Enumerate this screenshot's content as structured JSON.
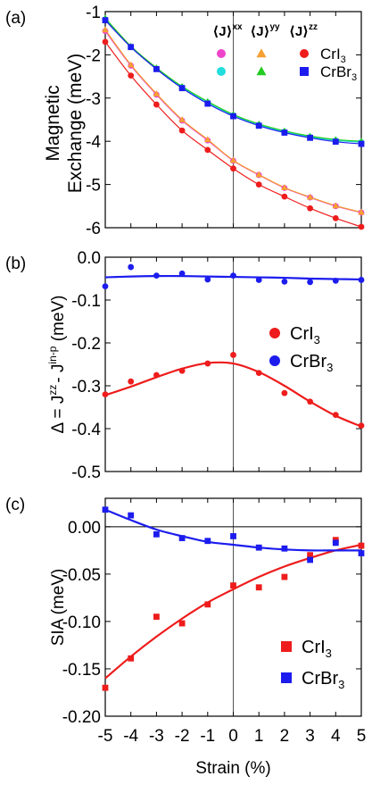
{
  "chart_data": [
    {
      "type": "scatter",
      "panel_label": "(a)",
      "ylabel_lines": [
        "Magnetic",
        "Exchange  (meV)"
      ],
      "xlabel": "",
      "ylim": [
        -6,
        -1
      ],
      "xlim": [
        -5,
        5
      ],
      "yticks": [
        -1,
        -2,
        -3,
        -4,
        -5,
        -6
      ],
      "xticks": [
        -5,
        -4,
        -3,
        -2,
        -1,
        0,
        1,
        2,
        3,
        4,
        5
      ],
      "legend": {
        "column_headers": [
          "⟨J⟩",
          "⟨J⟩",
          "⟨J⟩"
        ],
        "column_superscripts": [
          "xx",
          "yy",
          "zz"
        ],
        "row_labels": [
          "CrI",
          "CrBr"
        ],
        "row_subscripts": [
          "3",
          "3"
        ],
        "placement": "top-right"
      },
      "series": [
        {
          "name": "CrI3 J_xx",
          "color": "#ee44cc",
          "marker": "circle",
          "fit_color": "#ee44cc",
          "x": [
            -5,
            -4,
            -3,
            -2,
            -1,
            0,
            1,
            2,
            3,
            4,
            5
          ],
          "values": [
            -1.45,
            -2.25,
            -2.92,
            -3.52,
            -3.98,
            -4.45,
            -4.78,
            -5.08,
            -5.3,
            -5.5,
            -5.65
          ]
        },
        {
          "name": "CrI3 J_yy",
          "color": "#f5a030",
          "marker": "triangle",
          "fit_color": "#f5a030",
          "x": [
            -5,
            -4,
            -3,
            -2,
            -1,
            0,
            1,
            2,
            3,
            4,
            5
          ],
          "values": [
            -1.42,
            -2.23,
            -2.9,
            -3.5,
            -3.96,
            -4.44,
            -4.77,
            -5.07,
            -5.29,
            -5.49,
            -5.64
          ]
        },
        {
          "name": "CrI3 J_zz",
          "color": "#ee1c1c",
          "marker": "circle",
          "fit_color": "#ee1c1c",
          "x": [
            -5,
            -4,
            -3,
            -2,
            -1,
            0,
            1,
            2,
            3,
            4,
            5
          ],
          "values": [
            -1.7,
            -2.48,
            -3.15,
            -3.75,
            -4.2,
            -4.63,
            -5.0,
            -5.28,
            -5.55,
            -5.78,
            -5.98
          ]
        },
        {
          "name": "CrBr3 J_xx",
          "color": "#22dddd",
          "marker": "circle",
          "fit_color": "#22dddd",
          "x": [
            -5,
            -4,
            -3,
            -2,
            -1,
            0,
            1,
            2,
            3,
            4,
            5
          ],
          "values": [
            -1.18,
            -1.82,
            -2.32,
            -2.75,
            -3.1,
            -3.4,
            -3.62,
            -3.78,
            -3.9,
            -3.98,
            -4.02
          ]
        },
        {
          "name": "CrBr3 J_yy",
          "color": "#22cc22",
          "marker": "triangle",
          "fit_color": "#22cc22",
          "x": [
            -5,
            -4,
            -3,
            -2,
            -1,
            0,
            1,
            2,
            3,
            4,
            5
          ],
          "values": [
            -1.15,
            -1.8,
            -2.3,
            -2.73,
            -3.08,
            -3.38,
            -3.6,
            -3.76,
            -3.88,
            -3.96,
            -4.0
          ]
        },
        {
          "name": "CrBr3 J_zz",
          "color": "#1c1cee",
          "marker": "square",
          "fit_color": "#1c1cee",
          "x": [
            -5,
            -4,
            -3,
            -2,
            -1,
            0,
            1,
            2,
            3,
            4,
            5
          ],
          "values": [
            -1.2,
            -1.82,
            -2.33,
            -2.77,
            -3.13,
            -3.42,
            -3.64,
            -3.8,
            -3.92,
            -4.01,
            -4.06
          ]
        }
      ]
    },
    {
      "type": "scatter",
      "panel_label": "(b)",
      "ylabel_parts": [
        "Δ = J",
        "zz",
        "- J",
        "in-p",
        " (meV)"
      ],
      "ylim": [
        -0.5,
        0.0
      ],
      "xlim": [
        -5,
        5
      ],
      "yticks": [
        "0.0",
        "-0.1",
        "-0.2",
        "-0.3",
        "-0.4",
        "-0.5"
      ],
      "ytick_values": [
        0.0,
        -0.1,
        -0.2,
        -0.3,
        -0.4,
        -0.5
      ],
      "xticks": [
        -5,
        -4,
        -3,
        -2,
        -1,
        0,
        1,
        2,
        3,
        4,
        5
      ],
      "legend": {
        "entries": [
          {
            "label": "CrI",
            "sub": "3",
            "color": "#ee1c1c",
            "marker": "circle"
          },
          {
            "label": "CrBr",
            "sub": "3",
            "color": "#1c1cee",
            "marker": "circle"
          }
        ],
        "placement": "center-right"
      },
      "series": [
        {
          "name": "CrI3",
          "color": "#ee1c1c",
          "marker": "circle",
          "x": [
            -5,
            -4,
            -3,
            -2,
            -1,
            0,
            1,
            2,
            3,
            4,
            5
          ],
          "values": [
            -0.32,
            -0.29,
            -0.275,
            -0.265,
            -0.248,
            -0.228,
            -0.27,
            -0.317,
            -0.337,
            -0.368,
            -0.393
          ],
          "fit_x": [
            -5,
            -4,
            -3,
            -2,
            -1,
            0,
            1,
            2,
            3,
            4,
            5
          ],
          "fit": [
            -0.322,
            -0.302,
            -0.28,
            -0.26,
            -0.247,
            -0.248,
            -0.268,
            -0.3,
            -0.337,
            -0.37,
            -0.395
          ]
        },
        {
          "name": "CrBr3",
          "color": "#1c1cee",
          "marker": "circle",
          "x": [
            -5,
            -4,
            -3,
            -2,
            -1,
            0,
            1,
            2,
            3,
            4,
            5
          ],
          "values": [
            -0.068,
            -0.023,
            -0.043,
            -0.038,
            -0.052,
            -0.043,
            -0.053,
            -0.057,
            -0.058,
            -0.055,
            -0.053
          ],
          "fit_x": [
            -5,
            -4,
            -3,
            -2,
            -1,
            0,
            1,
            2,
            3,
            4,
            5
          ],
          "fit": [
            -0.047,
            -0.045,
            -0.044,
            -0.044,
            -0.045,
            -0.046,
            -0.047,
            -0.048,
            -0.05,
            -0.051,
            -0.052
          ]
        }
      ]
    },
    {
      "type": "scatter",
      "panel_label": "(c)",
      "ylabel": "SIA (meV)",
      "xlabel": "Strain (%)",
      "ylim": [
        -0.2,
        0.03
      ],
      "xlim": [
        -5,
        5
      ],
      "yticks": [
        "0.00",
        "-0.05",
        "-0.10",
        "-0.15",
        "-0.20"
      ],
      "ytick_values": [
        0.0,
        -0.05,
        -0.1,
        -0.15,
        -0.2
      ],
      "xticks": [
        -5,
        -4,
        -3,
        -2,
        -1,
        0,
        1,
        2,
        3,
        4,
        5
      ],
      "legend": {
        "entries": [
          {
            "label": "CrI",
            "sub": "3",
            "color": "#ee1c1c",
            "marker": "square"
          },
          {
            "label": "CrBr",
            "sub": "3",
            "color": "#1c1cee",
            "marker": "square"
          }
        ],
        "placement": "bottom-right"
      },
      "series": [
        {
          "name": "CrI3",
          "color": "#ee1c1c",
          "marker": "square",
          "x": [
            -5,
            -4,
            -3,
            -2,
            -1,
            0,
            1,
            2,
            3,
            4,
            5
          ],
          "values": [
            -0.17,
            -0.139,
            -0.095,
            -0.102,
            -0.082,
            -0.062,
            -0.064,
            -0.053,
            -0.03,
            -0.014,
            -0.02
          ],
          "fit_x": [
            -5,
            -4,
            -3,
            -2,
            -1,
            0,
            1,
            2,
            3,
            4,
            5
          ],
          "fit": [
            -0.16,
            -0.137,
            -0.116,
            -0.097,
            -0.08,
            -0.066,
            -0.053,
            -0.042,
            -0.033,
            -0.025,
            -0.019
          ]
        },
        {
          "name": "CrBr3",
          "color": "#1c1cee",
          "marker": "square",
          "x": [
            -5,
            -4,
            -3,
            -2,
            -1,
            0,
            1,
            2,
            3,
            4,
            5
          ],
          "values": [
            0.018,
            0.012,
            -0.008,
            -0.012,
            -0.015,
            -0.01,
            -0.022,
            -0.023,
            -0.035,
            -0.017,
            -0.028
          ],
          "fit_x": [
            -5,
            -4,
            -3,
            -2,
            -1,
            0,
            1,
            2,
            3,
            4,
            5
          ],
          "fit": [
            0.018,
            0.007,
            -0.003,
            -0.01,
            -0.016,
            -0.019,
            -0.022,
            -0.024,
            -0.025,
            -0.025,
            -0.025
          ]
        }
      ]
    }
  ]
}
